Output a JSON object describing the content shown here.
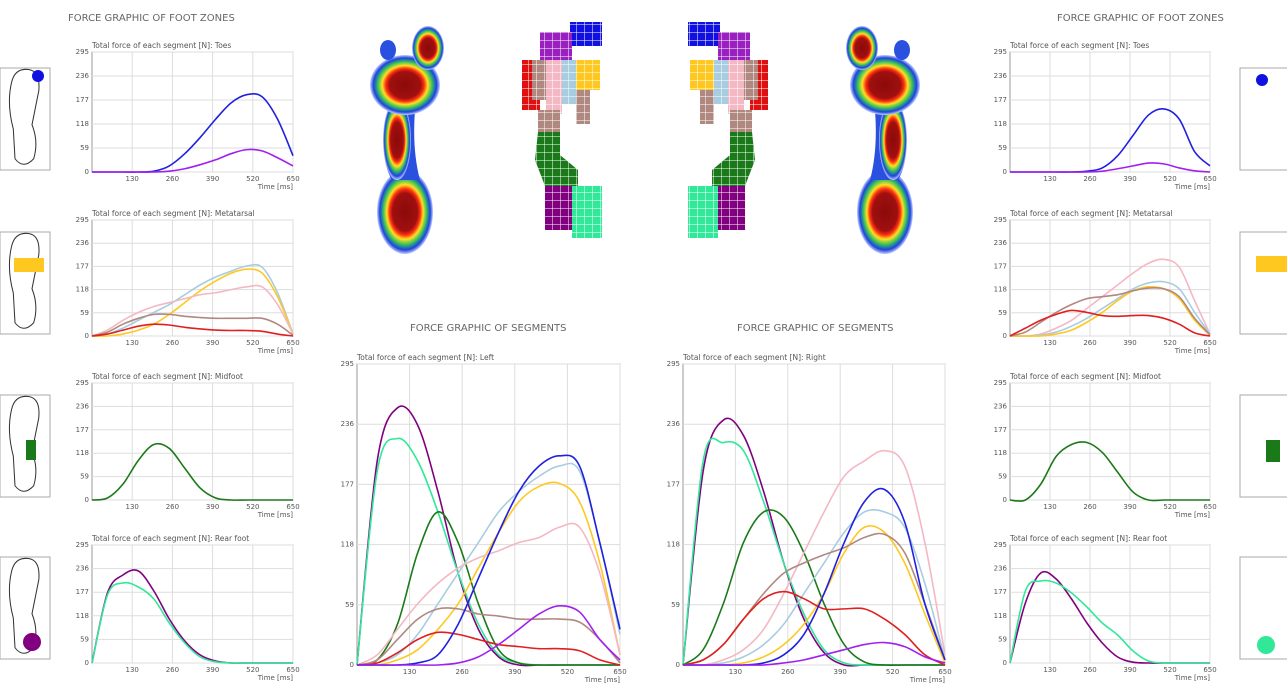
{
  "headings": [
    "FORCE GRAPHIC OF FOOT ZONES",
    "FORCE GRAPHIC OF SEGMENTS",
    "FORCE GRAPHIC OF SEGMENTS",
    "FORCE GRAPHIC OF FOOT ZONES"
  ],
  "chart_data": [
    {
      "type": "line",
      "title": "Total force of each segment [N]: Toes",
      "xlabel": "Time [ms]",
      "x": [
        0,
        50,
        100,
        150,
        200,
        250,
        300,
        350,
        400,
        450,
        500,
        550,
        600,
        650
      ],
      "xlim": [
        0,
        650
      ],
      "ylim": [
        0,
        295
      ],
      "xticks": [
        130,
        260,
        390,
        520,
        650
      ],
      "yticks": [
        0,
        59,
        118,
        177,
        236,
        295
      ],
      "grid": true,
      "series": [
        {
          "color": "#2020e0",
          "values": [
            0,
            0,
            0,
            0,
            2,
            15,
            45,
            85,
            130,
            170,
            190,
            185,
            130,
            40
          ]
        },
        {
          "color": "#a020f0",
          "values": [
            0,
            0,
            0,
            0,
            0,
            2,
            8,
            18,
            30,
            45,
            55,
            52,
            35,
            15
          ]
        }
      ]
    },
    {
      "type": "line",
      "title": "Total force of each segment [N]: Metatarsal",
      "xlabel": "Time [ms]",
      "x": [
        0,
        50,
        100,
        150,
        200,
        250,
        300,
        350,
        400,
        450,
        500,
        550,
        600,
        650
      ],
      "xlim": [
        0,
        650
      ],
      "ylim": [
        0,
        295
      ],
      "xticks": [
        130,
        260,
        390,
        520,
        650
      ],
      "yticks": [
        0,
        59,
        118,
        177,
        236,
        295
      ],
      "grid": true,
      "series": [
        {
          "color": "#a8cce0",
          "values": [
            0,
            5,
            20,
            40,
            60,
            80,
            105,
            130,
            150,
            165,
            178,
            175,
            110,
            5
          ]
        },
        {
          "color": "#ffc820",
          "values": [
            0,
            0,
            5,
            15,
            30,
            55,
            85,
            115,
            140,
            160,
            170,
            160,
            100,
            5
          ]
        },
        {
          "color": "#f4b8c4",
          "values": [
            0,
            15,
            40,
            60,
            75,
            85,
            95,
            105,
            110,
            118,
            125,
            125,
            80,
            5
          ]
        },
        {
          "color": "#b08880",
          "values": [
            0,
            10,
            30,
            45,
            55,
            55,
            50,
            47,
            45,
            45,
            45,
            45,
            30,
            2
          ]
        },
        {
          "color": "#e02020",
          "values": [
            0,
            5,
            15,
            25,
            30,
            28,
            22,
            18,
            15,
            14,
            14,
            12,
            5,
            0
          ]
        }
      ]
    },
    {
      "type": "line",
      "title": "Total force of each segment [N]: Midfoot",
      "xlabel": "Time [ms]",
      "x": [
        0,
        50,
        100,
        150,
        200,
        250,
        300,
        350,
        400,
        450,
        500,
        550,
        600,
        650
      ],
      "xlim": [
        0,
        650
      ],
      "ylim": [
        0,
        295
      ],
      "xticks": [
        130,
        260,
        390,
        520,
        650
      ],
      "yticks": [
        0,
        59,
        118,
        177,
        236,
        295
      ],
      "grid": true,
      "series": [
        {
          "color": "#1a7a1a",
          "values": [
            0,
            5,
            40,
            100,
            140,
            130,
            80,
            30,
            5,
            0,
            0,
            0,
            0,
            0
          ]
        }
      ]
    },
    {
      "type": "line",
      "title": "Total force of each segment [N]: Rear foot",
      "xlabel": "Time [ms]",
      "x": [
        0,
        50,
        100,
        150,
        200,
        250,
        300,
        350,
        400,
        450,
        500,
        550,
        600,
        650
      ],
      "xlim": [
        0,
        650
      ],
      "ylim": [
        0,
        295
      ],
      "xticks": [
        130,
        260,
        390,
        520,
        650
      ],
      "yticks": [
        0,
        59,
        118,
        177,
        236,
        295
      ],
      "grid": true,
      "series": [
        {
          "color": "#800080",
          "values": [
            0,
            175,
            220,
            230,
            180,
            110,
            55,
            20,
            5,
            0,
            0,
            0,
            0,
            0
          ]
        },
        {
          "color": "#30e898",
          "values": [
            0,
            170,
            200,
            190,
            160,
            100,
            50,
            15,
            3,
            0,
            0,
            0,
            0,
            0
          ]
        }
      ]
    },
    {
      "type": "line",
      "title": "Total force of each segment [N]: Left",
      "xlabel": "Time [ms]",
      "x": [
        0,
        50,
        100,
        150,
        200,
        250,
        300,
        350,
        400,
        450,
        500,
        550,
        600,
        650
      ],
      "xlim": [
        0,
        650
      ],
      "ylim": [
        0,
        295
      ],
      "xticks": [
        130,
        260,
        390,
        520,
        650
      ],
      "yticks": [
        0,
        59,
        118,
        177,
        236,
        295
      ],
      "grid": true,
      "series": [
        {
          "color": "#800080",
          "values": [
            0,
            200,
            252,
            235,
            170,
            90,
            35,
            8,
            0,
            0,
            0,
            0,
            0,
            0
          ]
        },
        {
          "color": "#30e898",
          "values": [
            0,
            190,
            222,
            200,
            150,
            90,
            40,
            10,
            2,
            0,
            0,
            0,
            0,
            0
          ]
        },
        {
          "color": "#1a7a1a",
          "values": [
            0,
            5,
            40,
            110,
            150,
            120,
            60,
            15,
            2,
            0,
            0,
            0,
            0,
            0
          ]
        },
        {
          "color": "#a8cce0",
          "values": [
            0,
            2,
            10,
            30,
            60,
            90,
            120,
            150,
            170,
            185,
            195,
            190,
            120,
            30
          ]
        },
        {
          "color": "#ffc820",
          "values": [
            0,
            0,
            5,
            15,
            35,
            60,
            95,
            130,
            160,
            175,
            178,
            160,
            100,
            10
          ]
        },
        {
          "color": "#f4b8c4",
          "values": [
            0,
            10,
            35,
            60,
            80,
            95,
            105,
            112,
            120,
            125,
            135,
            135,
            90,
            10
          ]
        },
        {
          "color": "#b08880",
          "values": [
            0,
            5,
            25,
            45,
            55,
            55,
            50,
            48,
            45,
            45,
            45,
            42,
            25,
            2
          ]
        },
        {
          "color": "#e02020",
          "values": [
            0,
            2,
            12,
            25,
            32,
            30,
            25,
            20,
            18,
            16,
            16,
            14,
            5,
            0
          ]
        },
        {
          "color": "#2020e0",
          "values": [
            0,
            0,
            0,
            2,
            10,
            40,
            85,
            130,
            170,
            195,
            205,
            195,
            120,
            35
          ]
        },
        {
          "color": "#a020f0",
          "values": [
            0,
            0,
            0,
            0,
            0,
            2,
            8,
            20,
            35,
            50,
            58,
            52,
            25,
            5
          ]
        }
      ]
    },
    {
      "type": "line",
      "title": "Total force of each segment [N]: Right",
      "xlabel": "Time [ms]",
      "x": [
        0,
        50,
        100,
        150,
        200,
        250,
        300,
        350,
        400,
        450,
        500,
        550,
        600,
        650
      ],
      "xlim": [
        0,
        650
      ],
      "ylim": [
        0,
        295
      ],
      "xticks": [
        130,
        260,
        390,
        520,
        650
      ],
      "yticks": [
        0,
        59,
        118,
        177,
        236,
        295
      ],
      "grid": true,
      "series": [
        {
          "color": "#800080",
          "values": [
            0,
            190,
            240,
            225,
            170,
            100,
            45,
            12,
            0,
            0,
            0,
            0,
            0,
            0
          ]
        },
        {
          "color": "#30e898",
          "values": [
            0,
            200,
            218,
            210,
            160,
            100,
            50,
            15,
            2,
            0,
            0,
            0,
            0,
            0
          ]
        },
        {
          "color": "#1a7a1a",
          "values": [
            0,
            15,
            60,
            120,
            150,
            145,
            110,
            60,
            20,
            3,
            0,
            0,
            0,
            0
          ]
        },
        {
          "color": "#f4b8c4",
          "values": [
            0,
            0,
            5,
            15,
            35,
            70,
            110,
            150,
            185,
            200,
            210,
            195,
            120,
            10
          ]
        },
        {
          "color": "#a8cce0",
          "values": [
            0,
            0,
            2,
            8,
            20,
            40,
            70,
            100,
            130,
            150,
            150,
            135,
            80,
            5
          ]
        },
        {
          "color": "#ffc820",
          "values": [
            0,
            0,
            0,
            2,
            8,
            20,
            40,
            70,
            110,
            135,
            130,
            100,
            50,
            2
          ]
        },
        {
          "color": "#b08880",
          "values": [
            0,
            5,
            20,
            45,
            70,
            90,
            100,
            108,
            115,
            125,
            128,
            110,
            60,
            5
          ]
        },
        {
          "color": "#e02020",
          "values": [
            0,
            5,
            20,
            45,
            65,
            72,
            65,
            55,
            55,
            55,
            45,
            30,
            10,
            0
          ]
        },
        {
          "color": "#2020e0",
          "values": [
            0,
            0,
            0,
            0,
            2,
            10,
            30,
            70,
            120,
            160,
            172,
            140,
            60,
            5
          ]
        },
        {
          "color": "#a020f0",
          "values": [
            0,
            0,
            0,
            0,
            0,
            2,
            5,
            10,
            15,
            20,
            22,
            18,
            8,
            2
          ]
        }
      ]
    },
    {
      "type": "line",
      "title": "Total force of each segment [N]: Toes",
      "xlabel": "Time [ms]",
      "x": [
        0,
        50,
        100,
        150,
        200,
        250,
        300,
        350,
        400,
        450,
        500,
        550,
        600,
        650
      ],
      "xlim": [
        0,
        650
      ],
      "ylim": [
        0,
        295
      ],
      "xticks": [
        130,
        260,
        390,
        520,
        650
      ],
      "yticks": [
        0,
        59,
        118,
        177,
        236,
        295
      ],
      "grid": true,
      "series": [
        {
          "color": "#2020e0",
          "values": [
            0,
            0,
            0,
            0,
            0,
            2,
            10,
            40,
            90,
            140,
            155,
            130,
            50,
            15
          ]
        },
        {
          "color": "#a020f0",
          "values": [
            0,
            0,
            0,
            0,
            0,
            0,
            2,
            8,
            15,
            22,
            20,
            10,
            3,
            0
          ]
        }
      ]
    },
    {
      "type": "line",
      "title": "Total force of each segment [N]: Metatarsal",
      "xlabel": "Time [ms]",
      "x": [
        0,
        50,
        100,
        150,
        200,
        250,
        300,
        350,
        400,
        450,
        500,
        550,
        600,
        650
      ],
      "xlim": [
        0,
        650
      ],
      "ylim": [
        0,
        295
      ],
      "xticks": [
        130,
        260,
        390,
        520,
        650
      ],
      "yticks": [
        0,
        59,
        118,
        177,
        236,
        295
      ],
      "grid": true,
      "series": [
        {
          "color": "#f4b8c4",
          "values": [
            0,
            0,
            5,
            20,
            40,
            70,
            100,
            130,
            160,
            185,
            195,
            175,
            90,
            5
          ]
        },
        {
          "color": "#a8cce0",
          "values": [
            0,
            0,
            2,
            10,
            25,
            45,
            70,
            95,
            120,
            135,
            138,
            120,
            60,
            5
          ]
        },
        {
          "color": "#ffc820",
          "values": [
            0,
            0,
            0,
            5,
            15,
            35,
            60,
            90,
            115,
            125,
            120,
            95,
            40,
            2
          ]
        },
        {
          "color": "#b08880",
          "values": [
            0,
            10,
            35,
            60,
            80,
            95,
            100,
            105,
            115,
            122,
            120,
            100,
            45,
            3
          ]
        },
        {
          "color": "#e02020",
          "values": [
            0,
            20,
            40,
            55,
            65,
            60,
            52,
            50,
            52,
            52,
            45,
            30,
            8,
            0
          ]
        }
      ]
    },
    {
      "type": "line",
      "title": "Total force of each segment [N]: Midfoot",
      "xlabel": "Time [ms]",
      "x": [
        0,
        50,
        100,
        150,
        200,
        250,
        300,
        350,
        400,
        450,
        500,
        550,
        600,
        650
      ],
      "xlim": [
        0,
        650
      ],
      "ylim": [
        0,
        295
      ],
      "xticks": [
        130,
        260,
        390,
        520,
        650
      ],
      "yticks": [
        0,
        59,
        118,
        177,
        236,
        295
      ],
      "grid": true,
      "series": [
        {
          "color": "#1a7a1a",
          "values": [
            0,
            0,
            40,
            110,
            140,
            145,
            120,
            70,
            20,
            0,
            0,
            0,
            0,
            0
          ]
        }
      ]
    },
    {
      "type": "line",
      "title": "Total force of each segment [N]: Rear foot",
      "xlabel": "Time [ms]",
      "x": [
        0,
        50,
        100,
        150,
        200,
        250,
        300,
        350,
        400,
        450,
        500,
        550,
        600,
        650
      ],
      "xlim": [
        0,
        650
      ],
      "ylim": [
        0,
        295
      ],
      "xticks": [
        130,
        260,
        390,
        520,
        650
      ],
      "yticks": [
        0,
        59,
        118,
        177,
        236,
        295
      ],
      "grid": true,
      "series": [
        {
          "color": "#800080",
          "values": [
            0,
            150,
            225,
            210,
            160,
            100,
            50,
            15,
            2,
            0,
            0,
            0,
            0,
            0
          ]
        },
        {
          "color": "#30e898",
          "values": [
            0,
            180,
            205,
            200,
            175,
            140,
            100,
            70,
            30,
            5,
            0,
            0,
            0,
            0
          ]
        }
      ]
    }
  ]
}
